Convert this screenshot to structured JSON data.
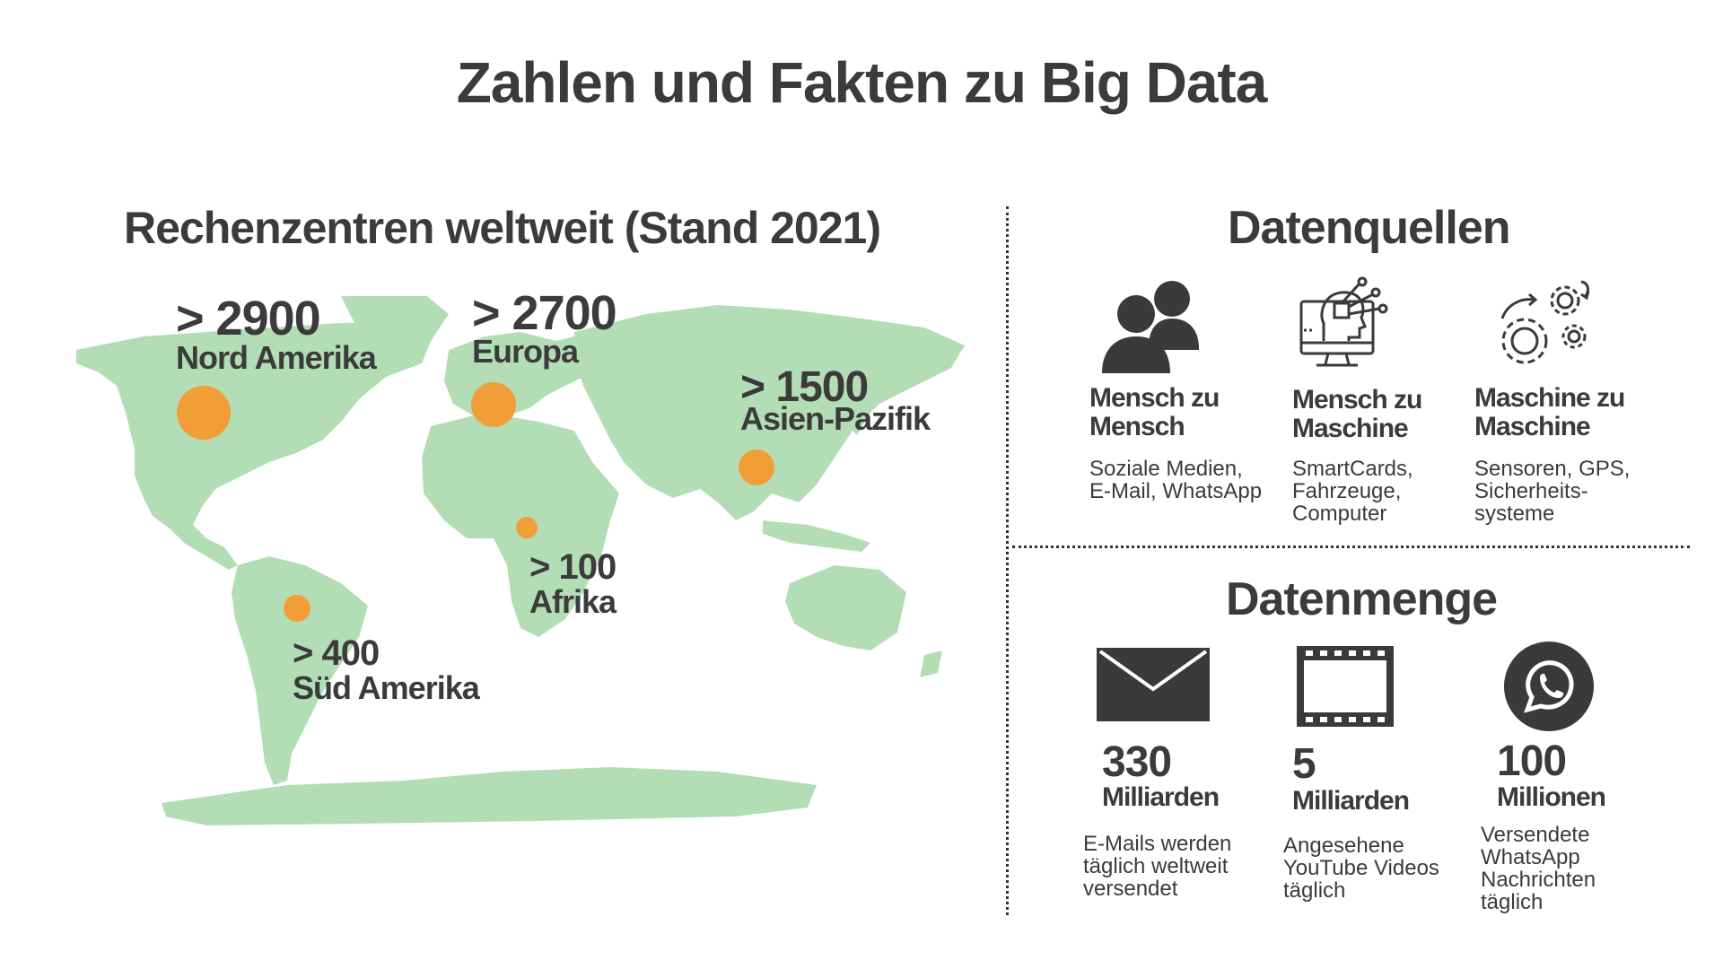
{
  "title": "Zahlen und Fakten zu Big Data",
  "map": {
    "title": "Rechenzentren weltweit (Stand 2021)",
    "regions": [
      {
        "value": "> 2900",
        "name": "Nord Amerika"
      },
      {
        "value": "> 2700",
        "name": "Europa"
      },
      {
        "value": "> 1500",
        "name": "Asien-Pazifik"
      },
      {
        "value": "> 100",
        "name": "Afrika"
      },
      {
        "value": "> 400",
        "name": "Süd Amerika"
      }
    ],
    "land_color": "#b3deb5",
    "marker_color": "#f19e38"
  },
  "sources": {
    "title": "Datenquellen",
    "items": [
      {
        "icon": "people-icon",
        "title": "Mensch zu Mensch",
        "desc": "Soziale Medien, E-Mail, WhatsApp"
      },
      {
        "icon": "ai-computer-icon",
        "title": "Mensch zu Maschine",
        "desc": "SmartCards, Fahrzeuge, Computer"
      },
      {
        "icon": "gears-icon",
        "title": "Maschine zu Maschine",
        "desc": "Sensoren, GPS, Sicherheits-systeme"
      }
    ]
  },
  "amount": {
    "title": "Datenmenge",
    "items": [
      {
        "icon": "envelope-icon",
        "number": "330",
        "unit": "Milliarden",
        "desc": "E-Mails werden täglich weltweit versendet"
      },
      {
        "icon": "film-icon",
        "number": "5",
        "unit": "Milliarden",
        "desc": "Angesehene YouTube Videos täglich"
      },
      {
        "icon": "whatsapp-icon",
        "number": "100",
        "unit": "Millionen",
        "desc": "Versendete WhatsApp Nachrichten täglich"
      }
    ]
  },
  "colors": {
    "text": "#3b3b3b",
    "icon": "#3a3a3a"
  }
}
